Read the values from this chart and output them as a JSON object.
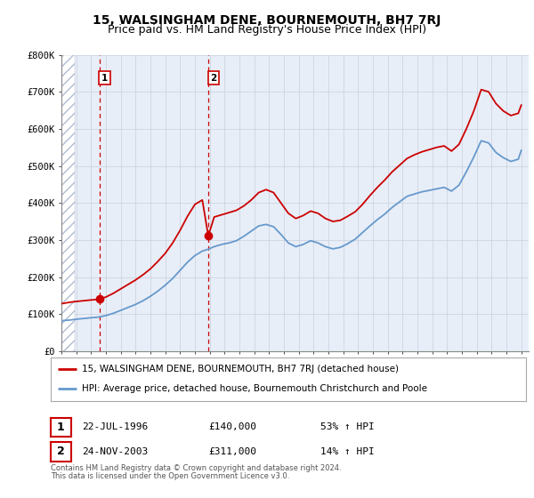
{
  "title": "15, WALSINGHAM DENE, BOURNEMOUTH, BH7 7RJ",
  "subtitle": "Price paid vs. HM Land Registry's House Price Index (HPI)",
  "legend_line1": "15, WALSINGHAM DENE, BOURNEMOUTH, BH7 7RJ (detached house)",
  "legend_line2": "HPI: Average price, detached house, Bournemouth Christchurch and Poole",
  "footer_line1": "Contains HM Land Registry data © Crown copyright and database right 2024.",
  "footer_line2": "This data is licensed under the Open Government Licence v3.0.",
  "sale1_date": "22-JUL-1996",
  "sale1_price": "£140,000",
  "sale1_hpi": "53% ↑ HPI",
  "sale2_date": "24-NOV-2003",
  "sale2_price": "£311,000",
  "sale2_hpi": "14% ↑ HPI",
  "sale1_x": 1996.55,
  "sale1_y": 140000,
  "sale2_x": 2003.9,
  "sale2_y": 311000,
  "ylim": [
    0,
    800000
  ],
  "xlim": [
    1994.0,
    2025.5
  ],
  "red_color": "#cc0000",
  "blue_color": "#6699cc",
  "background_color": "#e8eef8",
  "hatch_color": "#b0bcd0",
  "grid_color": "#c8d0dc",
  "title_fontsize": 10,
  "subtitle_fontsize": 9,
  "ytick_labels": [
    "£0",
    "£100K",
    "£200K",
    "£300K",
    "£400K",
    "£500K",
    "£600K",
    "£700K",
    "£800K"
  ],
  "ytick_values": [
    0,
    100000,
    200000,
    300000,
    400000,
    500000,
    600000,
    700000,
    800000
  ],
  "hpi_data_x": [
    1994.0,
    1994.3,
    1994.6,
    1995.0,
    1995.5,
    1996.0,
    1996.55,
    1997.0,
    1997.5,
    1998.0,
    1998.5,
    1999.0,
    1999.5,
    2000.0,
    2000.5,
    2001.0,
    2001.5,
    2002.0,
    2002.5,
    2003.0,
    2003.5,
    2003.9,
    2004.3,
    2004.8,
    2005.3,
    2005.8,
    2006.3,
    2006.8,
    2007.3,
    2007.8,
    2008.3,
    2008.8,
    2009.3,
    2009.8,
    2010.3,
    2010.8,
    2011.3,
    2011.8,
    2012.3,
    2012.8,
    2013.3,
    2013.8,
    2014.3,
    2014.8,
    2015.3,
    2015.8,
    2016.3,
    2016.8,
    2017.3,
    2017.8,
    2018.3,
    2018.8,
    2019.3,
    2019.8,
    2020.3,
    2020.8,
    2021.3,
    2021.8,
    2022.3,
    2022.8,
    2023.3,
    2023.8,
    2024.3,
    2024.8,
    2025.0
  ],
  "hpi_data_y": [
    82000,
    83000,
    84000,
    86000,
    88000,
    90000,
    92000,
    96000,
    102000,
    110000,
    118000,
    126000,
    136000,
    148000,
    162000,
    178000,
    196000,
    218000,
    240000,
    258000,
    270000,
    275000,
    282000,
    288000,
    292000,
    298000,
    310000,
    324000,
    338000,
    342000,
    336000,
    315000,
    292000,
    282000,
    288000,
    298000,
    292000,
    282000,
    276000,
    280000,
    290000,
    302000,
    320000,
    338000,
    355000,
    370000,
    388000,
    403000,
    418000,
    424000,
    430000,
    434000,
    438000,
    442000,
    432000,
    448000,
    484000,
    524000,
    568000,
    562000,
    536000,
    522000,
    512000,
    518000,
    542000
  ],
  "red_data_x": [
    1994.0,
    1994.3,
    1994.6,
    1995.0,
    1995.5,
    1996.0,
    1996.55,
    1997.0,
    1997.5,
    1998.0,
    1998.5,
    1999.0,
    1999.5,
    2000.0,
    2000.5,
    2001.0,
    2001.5,
    2002.0,
    2002.5,
    2003.0,
    2003.5,
    2003.9,
    2004.3,
    2004.8,
    2005.3,
    2005.8,
    2006.3,
    2006.8,
    2007.3,
    2007.8,
    2008.3,
    2008.8,
    2009.3,
    2009.8,
    2010.3,
    2010.8,
    2011.3,
    2011.8,
    2012.3,
    2012.8,
    2013.3,
    2013.8,
    2014.3,
    2014.8,
    2015.3,
    2015.8,
    2016.3,
    2016.8,
    2017.3,
    2017.8,
    2018.3,
    2018.8,
    2019.3,
    2019.8,
    2020.3,
    2020.8,
    2021.3,
    2021.8,
    2022.3,
    2022.8,
    2023.3,
    2023.8,
    2024.3,
    2024.8,
    2025.0
  ],
  "red_data_y": [
    128000,
    130000,
    132000,
    134000,
    136000,
    138000,
    140000,
    146000,
    156000,
    168000,
    180000,
    192000,
    206000,
    222000,
    242000,
    264000,
    292000,
    326000,
    364000,
    396000,
    408000,
    311000,
    362000,
    368000,
    374000,
    380000,
    392000,
    408000,
    428000,
    436000,
    428000,
    400000,
    372000,
    358000,
    366000,
    378000,
    372000,
    358000,
    350000,
    353000,
    364000,
    376000,
    396000,
    420000,
    442000,
    462000,
    484000,
    502000,
    520000,
    530000,
    538000,
    544000,
    550000,
    554000,
    540000,
    558000,
    600000,
    648000,
    706000,
    700000,
    668000,
    648000,
    636000,
    642000,
    664000
  ]
}
